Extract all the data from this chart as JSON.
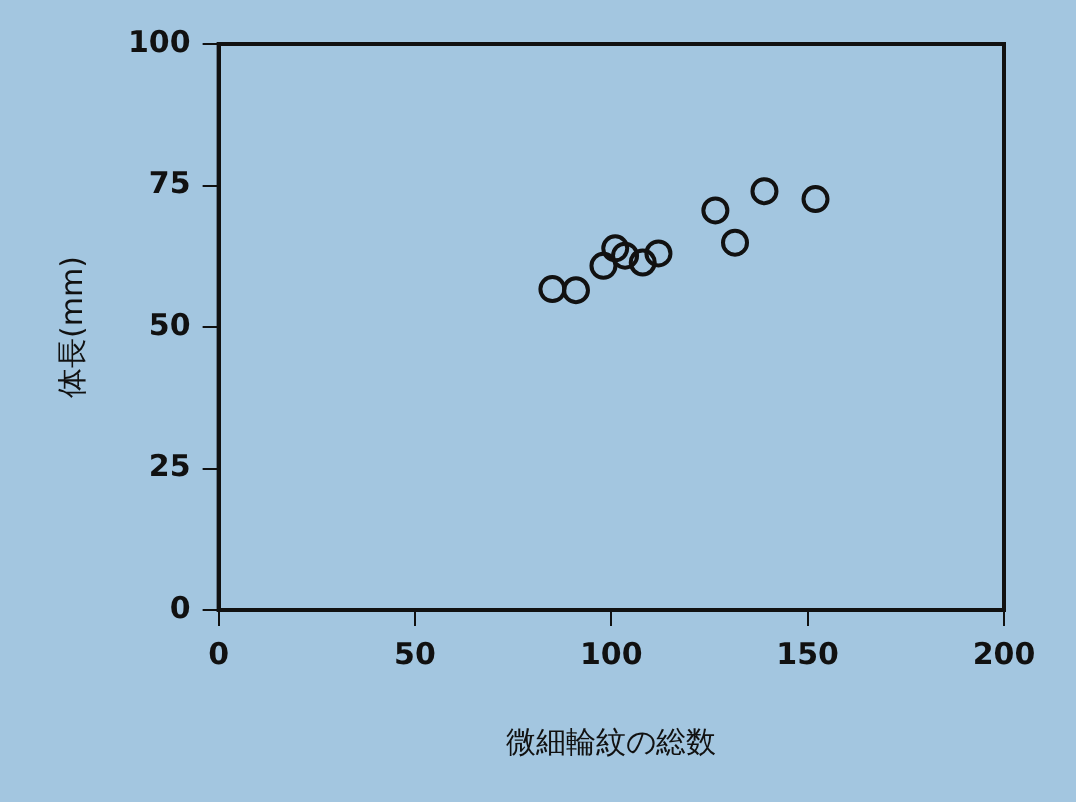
{
  "chart_data": {
    "type": "scatter",
    "xlabel": "微細輪紋の総数",
    "ylabel": "体長(mm)",
    "x": [
      85,
      91,
      98,
      101,
      103.5,
      108,
      112,
      126.5,
      131.5,
      139,
      152
    ],
    "values": [
      56.7,
      56.5,
      60.8,
      63.9,
      62.6,
      61.4,
      63,
      70.6,
      64.9,
      74,
      72.6
    ],
    "color": "#111111",
    "marker": "circle",
    "grid": false,
    "legend": false,
    "xlim": [
      0,
      200
    ],
    "xticks": [
      0,
      50,
      100,
      150,
      200
    ],
    "ylim": [
      0,
      100
    ],
    "yticks": [
      0,
      25,
      50,
      75,
      100
    ]
  }
}
